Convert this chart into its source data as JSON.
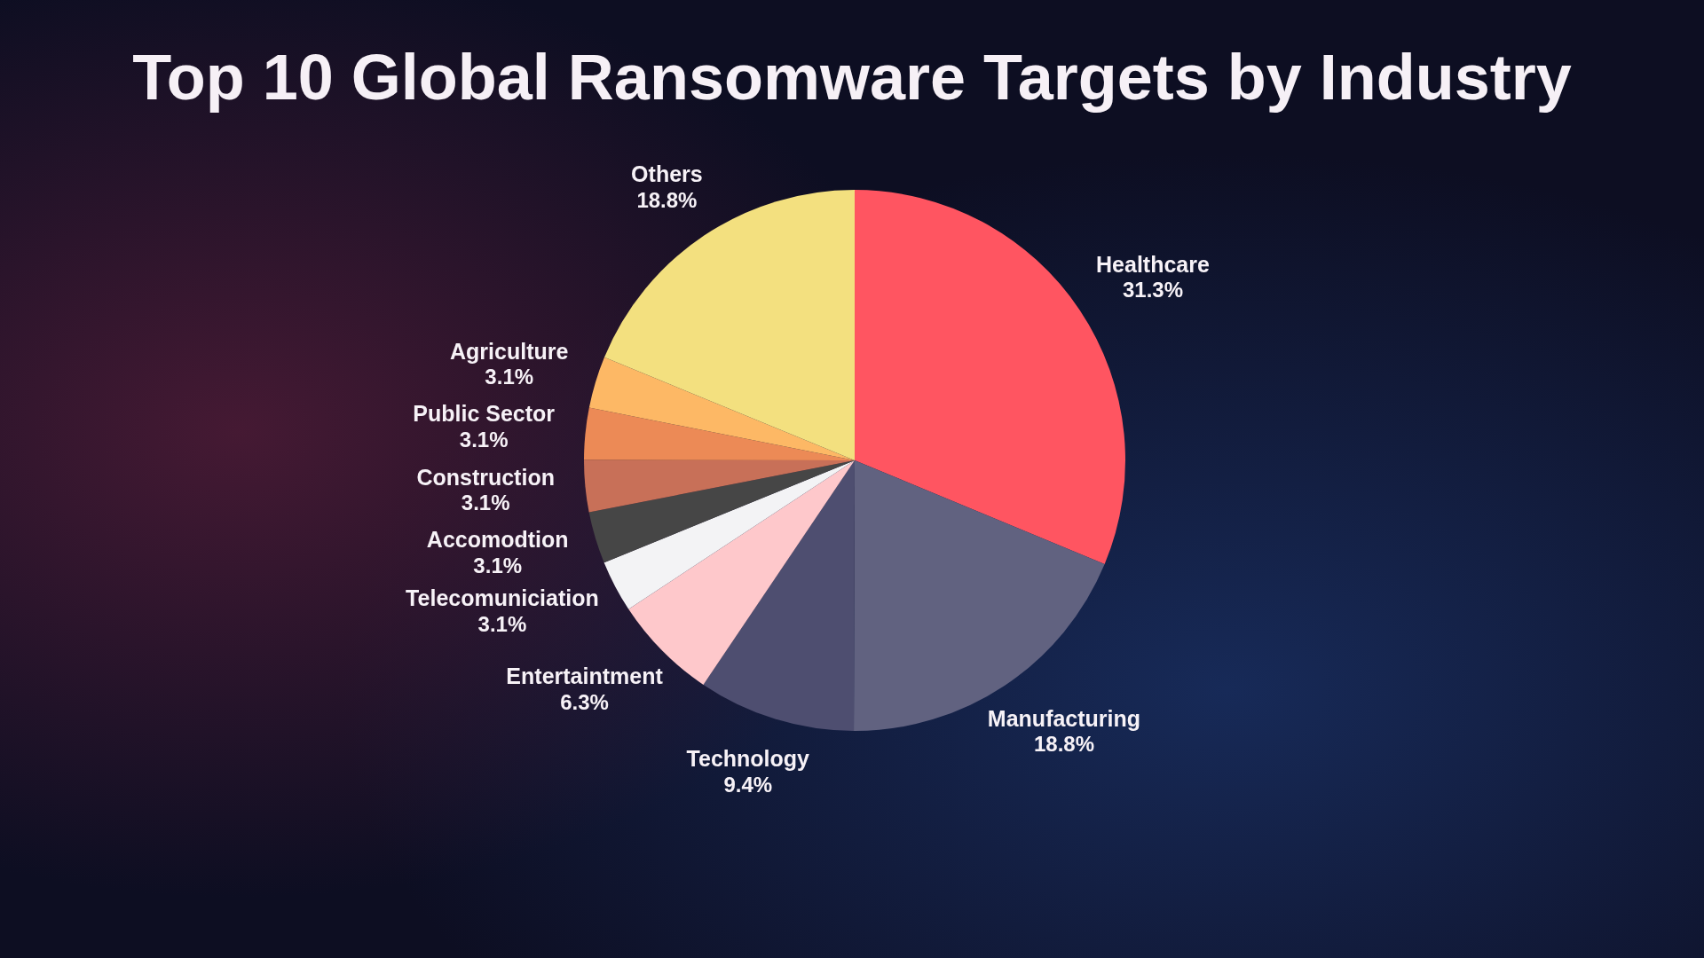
{
  "chart_data": {
    "type": "pie",
    "title": "Top 10 Global Ransomware Targets by Industry",
    "categories": [
      "Healthcare",
      "Manufacturing",
      "Technology",
      "Entertaintment",
      "Telecomuniciation",
      "Accomodtion",
      "Construction",
      "Public Sector",
      "Agriculture",
      "Others"
    ],
    "values": [
      31.3,
      18.8,
      9.4,
      6.3,
      3.1,
      3.1,
      3.1,
      3.1,
      3.1,
      18.8
    ],
    "colors": [
      "#ff5561",
      "#616280",
      "#4e4e70",
      "#fec8cb",
      "#f3f3f5",
      "#464646",
      "#c87058",
      "#ec8a56",
      "#fdb865",
      "#f3e07f"
    ],
    "value_labels": [
      "31.3%",
      "18.8%",
      "9.4%",
      "6.3%",
      "3.1%",
      "3.1%",
      "3.1%",
      "3.1%",
      "3.1%",
      "18.8%"
    ]
  }
}
